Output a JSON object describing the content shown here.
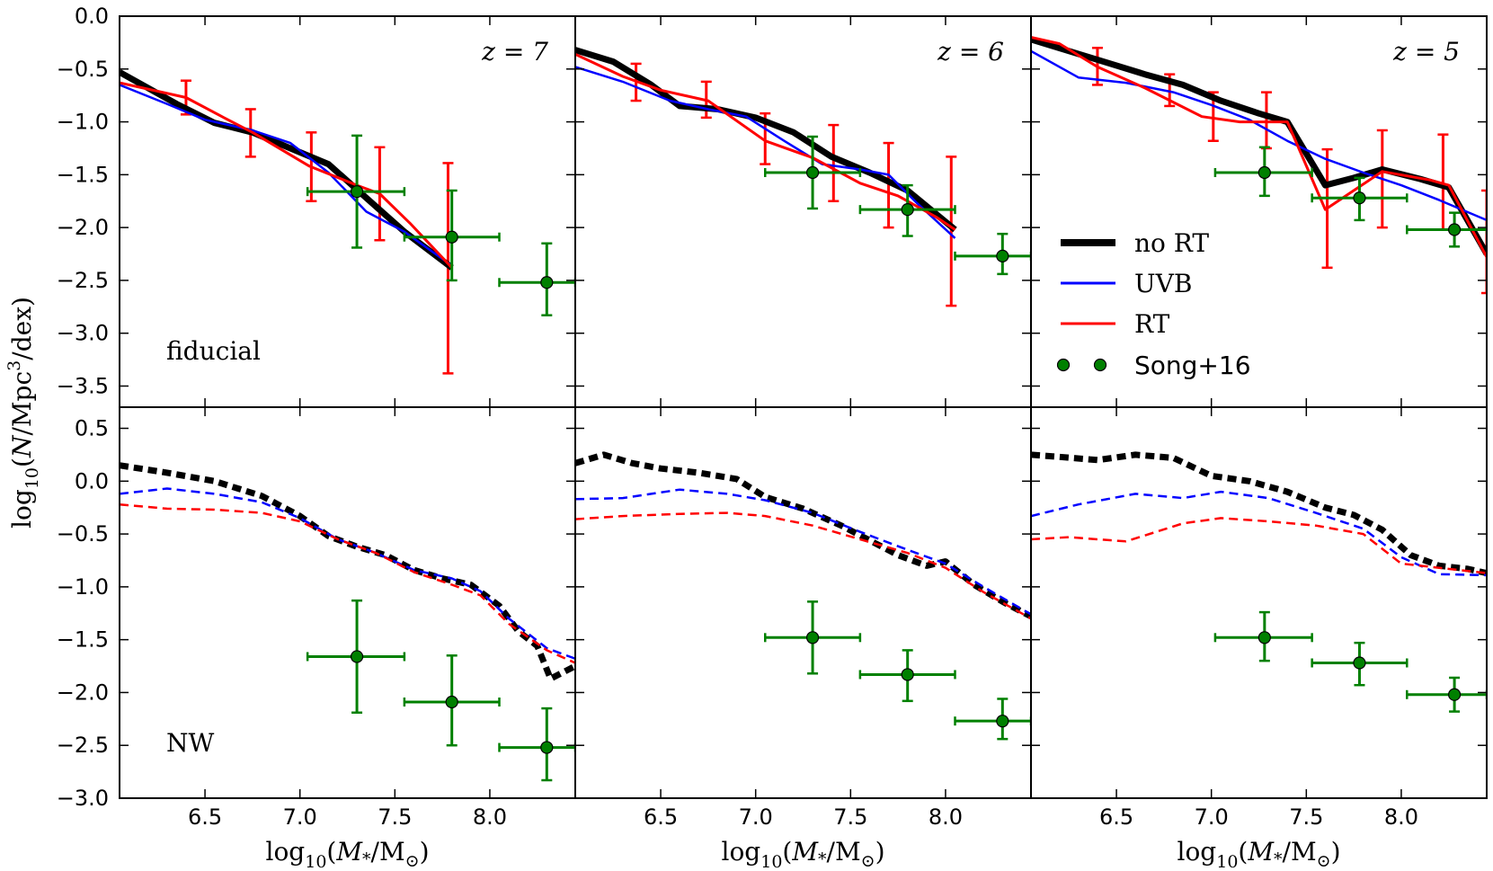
{
  "chart_data": {
    "type": "line",
    "figure": {
      "ylabel_parts": [
        "log",
        "10",
        "(",
        "N",
        "/Mpc",
        "3",
        "/dex)"
      ],
      "xlabel_parts": [
        "log",
        "10",
        "(",
        "M",
        "*",
        "/M",
        "⊙",
        ")"
      ]
    },
    "axes": {
      "xlim": [
        6.05,
        8.45
      ],
      "xticks": [
        6.5,
        7.0,
        7.5,
        8.0
      ],
      "xtick_labels": [
        "6.5",
        "7.0",
        "7.5",
        "8.0"
      ],
      "top_ylim": [
        -3.7,
        0.0
      ],
      "top_yticks": [
        0.0,
        -0.5,
        -1.0,
        -1.5,
        -2.0,
        -2.5,
        -3.0,
        -3.5
      ],
      "top_ytick_labels": [
        "0.0",
        "−0.5",
        "−1.0",
        "−1.5",
        "−2.0",
        "−2.5",
        "−3.0",
        "−3.5"
      ],
      "bottom_ylim": [
        -3.0,
        0.7
      ],
      "bottom_yticks": [
        0.5,
        0.0,
        -0.5,
        -1.0,
        -1.5,
        -2.0,
        -2.5,
        -3.0
      ],
      "bottom_ytick_labels": [
        "0.5",
        "0.0",
        "−0.5",
        "−1.0",
        "−1.5",
        "−2.0",
        "−2.5",
        "−3.0"
      ]
    },
    "row_labels": {
      "top": "fiducial",
      "bottom": "NW"
    },
    "legend": {
      "location": "center-right of top-right panel",
      "entries": [
        {
          "key": "noRT",
          "label": "no RT"
        },
        {
          "key": "UVB",
          "label": "UVB"
        },
        {
          "key": "RT",
          "label": "RT"
        },
        {
          "key": "song",
          "label": "Song+16"
        }
      ]
    },
    "colors": {
      "noRT": "#000000",
      "UVB": "#0000ff",
      "RT": "#ff0000",
      "song": "#008000"
    },
    "columns": [
      {
        "z_label": "z = 7",
        "z_value": "7",
        "fiducial": {
          "noRT": {
            "x": [
              6.05,
              6.35,
              6.55,
              6.75,
              6.95,
              7.15,
              7.35,
              7.55,
              7.8
            ],
            "y": [
              -0.53,
              -0.83,
              -1.01,
              -1.1,
              -1.25,
              -1.4,
              -1.72,
              -2.04,
              -2.38
            ]
          },
          "UVB": {
            "x": [
              6.05,
              6.3,
              6.5,
              6.75,
              6.95,
              7.15,
              7.35,
              7.55,
              7.8
            ],
            "y": [
              -0.65,
              -0.83,
              -0.98,
              -1.08,
              -1.2,
              -1.48,
              -1.85,
              -2.04,
              -2.36
            ]
          },
          "RT": {
            "x": [
              6.05,
              6.4,
              6.6,
              6.75,
              7.05,
              7.3,
              7.42,
              7.58,
              7.8
            ],
            "y": [
              -0.63,
              -0.77,
              -0.96,
              -1.1,
              -1.42,
              -1.6,
              -1.68,
              -1.96,
              -2.38
            ]
          },
          "RT_err": [
            {
              "x": 6.4,
              "y": -0.77,
              "lo": -0.93,
              "hi": -0.61
            },
            {
              "x": 6.74,
              "y": -1.1,
              "lo": -1.33,
              "hi": -0.88
            },
            {
              "x": 7.06,
              "y": -1.42,
              "lo": -1.75,
              "hi": -1.1
            },
            {
              "x": 7.42,
              "y": -1.68,
              "lo": -2.12,
              "hi": -1.24
            },
            {
              "x": 7.78,
              "y": -2.38,
              "lo": -3.38,
              "hi": -1.39
            }
          ]
        },
        "nw": {
          "noRT": {
            "x": [
              6.05,
              6.3,
              6.55,
              6.8,
              7.0,
              7.15,
              7.3,
              7.45,
              7.6,
              7.75,
              7.9,
              8.05,
              8.15,
              8.25,
              8.32,
              8.45
            ],
            "y": [
              0.15,
              0.08,
              0.0,
              -0.14,
              -0.33,
              -0.52,
              -0.62,
              -0.7,
              -0.84,
              -0.92,
              -0.98,
              -1.18,
              -1.42,
              -1.56,
              -1.87,
              -1.75
            ]
          },
          "UVB": {
            "x": [
              6.05,
              6.3,
              6.55,
              6.8,
              7.0,
              7.2,
              7.4,
              7.6,
              7.8,
              7.95,
              8.1,
              8.3,
              8.45
            ],
            "y": [
              -0.12,
              -0.07,
              -0.12,
              -0.2,
              -0.35,
              -0.55,
              -0.68,
              -0.84,
              -0.92,
              -1.04,
              -1.3,
              -1.58,
              -1.68
            ]
          },
          "RT": {
            "x": [
              6.05,
              6.3,
              6.55,
              6.8,
              7.0,
              7.2,
              7.4,
              7.6,
              7.8,
              7.95,
              8.1,
              8.3,
              8.45
            ],
            "y": [
              -0.22,
              -0.26,
              -0.27,
              -0.3,
              -0.38,
              -0.55,
              -0.68,
              -0.86,
              -0.98,
              -1.08,
              -1.35,
              -1.6,
              -1.72
            ]
          }
        },
        "song": [
          {
            "x": 7.3,
            "y": -1.66,
            "xlo": 7.04,
            "xhi": 7.55,
            "ylo": -2.19,
            "yhi": -1.13
          },
          {
            "x": 7.8,
            "y": -2.09,
            "xlo": 7.55,
            "xhi": 8.05,
            "ylo": -2.5,
            "yhi": -1.65
          },
          {
            "x": 8.3,
            "y": -2.52,
            "xlo": 8.05,
            "xhi": 8.45,
            "ylo": -2.83,
            "yhi": -2.15
          }
        ]
      },
      {
        "z_label": "z = 6",
        "z_value": "6",
        "fiducial": {
          "noRT": {
            "x": [
              6.05,
              6.25,
              6.45,
              6.6,
              6.8,
              7.0,
              7.2,
              7.4,
              7.6,
              7.8,
              8.05
            ],
            "y": [
              -0.32,
              -0.43,
              -0.65,
              -0.85,
              -0.88,
              -0.96,
              -1.1,
              -1.33,
              -1.48,
              -1.65,
              -2.02
            ]
          },
          "UVB": {
            "x": [
              6.05,
              6.3,
              6.55,
              6.75,
              6.95,
              7.15,
              7.35,
              7.55,
              7.7,
              7.85,
              8.05
            ],
            "y": [
              -0.48,
              -0.62,
              -0.8,
              -0.88,
              -0.95,
              -1.18,
              -1.4,
              -1.45,
              -1.5,
              -1.77,
              -2.1
            ]
          },
          "RT": {
            "x": [
              6.05,
              6.3,
              6.5,
              6.75,
              7.05,
              7.3,
              7.55,
              7.75,
              7.95,
              8.05
            ],
            "y": [
              -0.36,
              -0.57,
              -0.7,
              -0.8,
              -1.18,
              -1.34,
              -1.58,
              -1.7,
              -1.9,
              -2.02
            ]
          },
          "RT_err": [
            {
              "x": 6.37,
              "y": -0.62,
              "lo": -0.8,
              "hi": -0.45
            },
            {
              "x": 6.74,
              "y": -0.8,
              "lo": -0.96,
              "hi": -0.62
            },
            {
              "x": 7.05,
              "y": -1.18,
              "lo": -1.4,
              "hi": -0.92
            },
            {
              "x": 7.41,
              "y": -1.39,
              "lo": -1.75,
              "hi": -1.03
            },
            {
              "x": 7.7,
              "y": -1.65,
              "lo": -2.0,
              "hi": -1.2
            },
            {
              "x": 8.03,
              "y": -2.03,
              "lo": -2.74,
              "hi": -1.33
            }
          ]
        },
        "nw": {
          "noRT": {
            "x": [
              6.05,
              6.2,
              6.35,
              6.5,
              6.7,
              6.9,
              7.05,
              7.25,
              7.45,
              7.6,
              7.75,
              7.9,
              8.0,
              8.15,
              8.3,
              8.45
            ],
            "y": [
              0.17,
              0.25,
              0.17,
              0.12,
              0.08,
              0.02,
              -0.15,
              -0.26,
              -0.42,
              -0.56,
              -0.7,
              -0.8,
              -0.76,
              -0.98,
              -1.14,
              -1.28
            ]
          },
          "UVB": {
            "x": [
              6.05,
              6.3,
              6.6,
              6.85,
              7.05,
              7.3,
              7.55,
              7.8,
              8.0,
              8.2,
              8.45
            ],
            "y": [
              -0.17,
              -0.16,
              -0.08,
              -0.12,
              -0.18,
              -0.3,
              -0.48,
              -0.65,
              -0.78,
              -1.0,
              -1.26
            ]
          },
          "RT": {
            "x": [
              6.05,
              6.3,
              6.6,
              6.85,
              7.05,
              7.3,
              7.55,
              7.8,
              8.0,
              8.2,
              8.45
            ],
            "y": [
              -0.36,
              -0.33,
              -0.31,
              -0.3,
              -0.33,
              -0.42,
              -0.55,
              -0.68,
              -0.82,
              -1.05,
              -1.3
            ]
          }
        },
        "song": [
          {
            "x": 7.3,
            "y": -1.48,
            "xlo": 7.05,
            "xhi": 7.55,
            "ylo": -1.82,
            "yhi": -1.14
          },
          {
            "x": 7.8,
            "y": -1.83,
            "xlo": 7.55,
            "xhi": 8.05,
            "ylo": -2.08,
            "yhi": -1.6
          },
          {
            "x": 8.3,
            "y": -2.27,
            "xlo": 8.05,
            "xhi": 8.45,
            "ylo": -2.44,
            "yhi": -2.06
          }
        ]
      },
      {
        "z_label": "z = 5",
        "z_value": "5",
        "fiducial": {
          "noRT": {
            "x": [
              6.05,
              6.25,
              6.45,
              6.65,
              6.85,
              7.05,
              7.25,
              7.4,
              7.6,
              7.75,
              7.9,
              8.1,
              8.25,
              8.45
            ],
            "y": [
              -0.22,
              -0.33,
              -0.44,
              -0.55,
              -0.65,
              -0.8,
              -0.92,
              -1.0,
              -1.6,
              -1.53,
              -1.45,
              -1.54,
              -1.62,
              -2.25
            ]
          },
          "UVB": {
            "x": [
              6.05,
              6.3,
              6.55,
              6.8,
              7.0,
              7.2,
              7.4,
              7.6,
              7.8,
              8.0,
              8.2,
              8.45
            ],
            "y": [
              -0.33,
              -0.58,
              -0.63,
              -0.72,
              -0.84,
              -0.98,
              -1.18,
              -1.35,
              -1.48,
              -1.6,
              -1.74,
              -1.93
            ]
          },
          "RT": {
            "x": [
              6.05,
              6.2,
              6.4,
              6.65,
              6.95,
              7.15,
              7.4,
              7.6,
              7.9,
              8.15,
              8.25,
              8.45
            ],
            "y": [
              -0.2,
              -0.26,
              -0.48,
              -0.68,
              -0.95,
              -1.0,
              -1.0,
              -1.83,
              -1.47,
              -1.55,
              -1.6,
              -2.28
            ]
          },
          "RT_err": [
            {
              "x": 6.4,
              "y": -0.48,
              "lo": -0.65,
              "hi": -0.3
            },
            {
              "x": 6.78,
              "y": -0.72,
              "lo": -0.85,
              "hi": -0.55
            },
            {
              "x": 7.01,
              "y": -0.95,
              "lo": -1.18,
              "hi": -0.72
            },
            {
              "x": 7.29,
              "y": -1.0,
              "lo": -1.25,
              "hi": -0.72
            },
            {
              "x": 7.61,
              "y": -1.83,
              "lo": -2.38,
              "hi": -1.26
            },
            {
              "x": 7.9,
              "y": -1.47,
              "lo": -2.0,
              "hi": -1.08
            },
            {
              "x": 8.22,
              "y": -1.55,
              "lo": -2.02,
              "hi": -1.12
            },
            {
              "x": 8.45,
              "y": -2.28,
              "lo": -2.62,
              "hi": -1.65
            }
          ]
        },
        "nw": {
          "noRT": {
            "x": [
              6.05,
              6.2,
              6.4,
              6.6,
              6.8,
              7.0,
              7.2,
              7.4,
              7.6,
              7.75,
              7.9,
              8.05,
              8.2,
              8.35,
              8.45
            ],
            "y": [
              0.25,
              0.23,
              0.2,
              0.25,
              0.22,
              0.05,
              0.0,
              -0.1,
              -0.25,
              -0.32,
              -0.46,
              -0.7,
              -0.8,
              -0.83,
              -0.87
            ]
          },
          "UVB": {
            "x": [
              6.05,
              6.3,
              6.6,
              6.85,
              7.05,
              7.3,
              7.55,
              7.8,
              8.0,
              8.2,
              8.45
            ],
            "y": [
              -0.33,
              -0.22,
              -0.12,
              -0.16,
              -0.1,
              -0.16,
              -0.3,
              -0.45,
              -0.72,
              -0.88,
              -0.89
            ]
          },
          "RT": {
            "x": [
              6.05,
              6.25,
              6.55,
              6.85,
              7.05,
              7.3,
              7.55,
              7.8,
              8.0,
              8.2,
              8.45
            ],
            "y": [
              -0.55,
              -0.53,
              -0.57,
              -0.4,
              -0.35,
              -0.38,
              -0.42,
              -0.5,
              -0.78,
              -0.82,
              -0.87
            ]
          }
        },
        "song": [
          {
            "x": 7.28,
            "y": -1.48,
            "xlo": 7.02,
            "xhi": 7.53,
            "ylo": -1.7,
            "yhi": -1.24
          },
          {
            "x": 7.78,
            "y": -1.72,
            "xlo": 7.53,
            "xhi": 8.03,
            "ylo": -1.93,
            "yhi": -1.53
          },
          {
            "x": 8.28,
            "y": -2.02,
            "xlo": 8.03,
            "xhi": 8.45,
            "ylo": -2.18,
            "yhi": -1.86
          }
        ]
      }
    ]
  }
}
